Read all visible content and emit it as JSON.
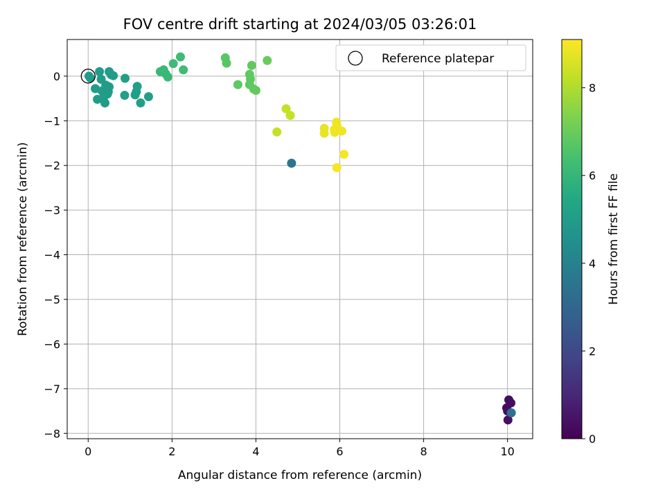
{
  "chart_data": {
    "type": "scatter",
    "title": "FOV centre drift starting at 2024/03/05 03:26:01",
    "xlabel": "Angular distance from reference (arcmin)",
    "ylabel": "Rotation from reference (arcmin)",
    "xlim": [
      -0.5,
      10.6
    ],
    "ylim": [
      -8.12,
      0.82
    ],
    "xticks": [
      0,
      2,
      4,
      6,
      8,
      10
    ],
    "yticks": [
      -8,
      -7,
      -6,
      -5,
      -4,
      -3,
      -2,
      -1,
      0
    ],
    "xtick_labels": [
      "0",
      "2",
      "4",
      "6",
      "8",
      "10"
    ],
    "ytick_labels": [
      "−8",
      "−7",
      "−6",
      "−5",
      "−4",
      "−3",
      "−2",
      "−1",
      "0"
    ],
    "grid": true,
    "legend": {
      "placement": "top-right",
      "entries": [
        "Reference platepar"
      ]
    },
    "reference_point": {
      "x": 0,
      "y": 0
    },
    "colorbar": {
      "label": "Hours from first FF file",
      "colormap": "viridis",
      "range": [
        0,
        9.1
      ],
      "ticks": [
        0,
        2,
        4,
        6,
        8
      ],
      "tick_labels": [
        "0",
        "2",
        "4",
        "6",
        "8"
      ]
    },
    "points": [
      {
        "x": 10.03,
        "y": -7.25,
        "c": 0.3
      },
      {
        "x": 10.08,
        "y": -7.32,
        "c": 0.3
      },
      {
        "x": 9.98,
        "y": -7.43,
        "c": 0.3
      },
      {
        "x": 10.0,
        "y": -7.5,
        "c": 0.3
      },
      {
        "x": 10.01,
        "y": -7.7,
        "c": 0.4
      },
      {
        "x": 10.09,
        "y": -7.54,
        "c": 3.4
      },
      {
        "x": 4.85,
        "y": -1.95,
        "c": 3.5
      },
      {
        "x": 0.02,
        "y": 0.0,
        "c": 5.0
      },
      {
        "x": 0.05,
        "y": -0.04,
        "c": 5.0
      },
      {
        "x": 0.17,
        "y": -0.28,
        "c": 5.0
      },
      {
        "x": 0.27,
        "y": 0.1,
        "c": 5.0
      },
      {
        "x": 0.31,
        "y": -0.07,
        "c": 5.0
      },
      {
        "x": 0.22,
        "y": -0.52,
        "c": 5.0
      },
      {
        "x": 0.33,
        "y": -0.33,
        "c": 5.0
      },
      {
        "x": 0.37,
        "y": -0.47,
        "c": 5.0
      },
      {
        "x": 0.4,
        "y": -0.6,
        "c": 5.0
      },
      {
        "x": 0.42,
        "y": -0.2,
        "c": 5.0
      },
      {
        "x": 0.46,
        "y": -0.4,
        "c": 5.0
      },
      {
        "x": 0.48,
        "y": -0.35,
        "c": 5.0
      },
      {
        "x": 0.5,
        "y": 0.1,
        "c": 5.0
      },
      {
        "x": 0.5,
        "y": -0.24,
        "c": 5.0
      },
      {
        "x": 0.55,
        "y": 0.03,
        "c": 5.0
      },
      {
        "x": 0.6,
        "y": 0.01,
        "c": 5.0
      },
      {
        "x": 0.88,
        "y": -0.05,
        "c": 5.1
      },
      {
        "x": 0.87,
        "y": -0.43,
        "c": 5.1
      },
      {
        "x": 1.12,
        "y": -0.42,
        "c": 5.1
      },
      {
        "x": 1.15,
        "y": -0.35,
        "c": 5.1
      },
      {
        "x": 1.17,
        "y": -0.23,
        "c": 5.1
      },
      {
        "x": 1.25,
        "y": -0.6,
        "c": 5.1
      },
      {
        "x": 1.44,
        "y": -0.46,
        "c": 5.1
      },
      {
        "x": 1.72,
        "y": 0.1,
        "c": 6.1
      },
      {
        "x": 1.8,
        "y": 0.14,
        "c": 6.1
      },
      {
        "x": 1.85,
        "y": 0.05,
        "c": 6.1
      },
      {
        "x": 1.9,
        "y": -0.02,
        "c": 6.1
      },
      {
        "x": 2.03,
        "y": 0.28,
        "c": 6.2
      },
      {
        "x": 2.2,
        "y": 0.43,
        "c": 6.2
      },
      {
        "x": 2.27,
        "y": 0.14,
        "c": 6.2
      },
      {
        "x": 3.27,
        "y": 0.41,
        "c": 6.7
      },
      {
        "x": 3.3,
        "y": 0.29,
        "c": 6.7
      },
      {
        "x": 3.57,
        "y": -0.19,
        "c": 6.8
      },
      {
        "x": 3.85,
        "y": 0.04,
        "c": 6.8
      },
      {
        "x": 3.87,
        "y": -0.07,
        "c": 6.8
      },
      {
        "x": 3.85,
        "y": -0.19,
        "c": 6.8
      },
      {
        "x": 3.9,
        "y": 0.24,
        "c": 6.9
      },
      {
        "x": 3.95,
        "y": -0.29,
        "c": 6.9
      },
      {
        "x": 4.0,
        "y": -0.32,
        "c": 6.9
      },
      {
        "x": 4.27,
        "y": 0.35,
        "c": 7.0
      },
      {
        "x": 4.5,
        "y": -1.25,
        "c": 8.3
      },
      {
        "x": 4.72,
        "y": -0.73,
        "c": 8.3
      },
      {
        "x": 4.82,
        "y": -0.88,
        "c": 8.3
      },
      {
        "x": 5.63,
        "y": -1.17,
        "c": 8.8
      },
      {
        "x": 5.63,
        "y": -1.28,
        "c": 8.8
      },
      {
        "x": 5.87,
        "y": -1.2,
        "c": 8.9
      },
      {
        "x": 5.88,
        "y": -1.26,
        "c": 8.9
      },
      {
        "x": 5.92,
        "y": -1.03,
        "c": 8.9
      },
      {
        "x": 5.93,
        "y": -1.1,
        "c": 8.9
      },
      {
        "x": 6.05,
        "y": -1.23,
        "c": 8.9
      },
      {
        "x": 5.93,
        "y": -2.05,
        "c": 9.0
      },
      {
        "x": 6.1,
        "y": -1.75,
        "c": 9.0
      }
    ]
  }
}
